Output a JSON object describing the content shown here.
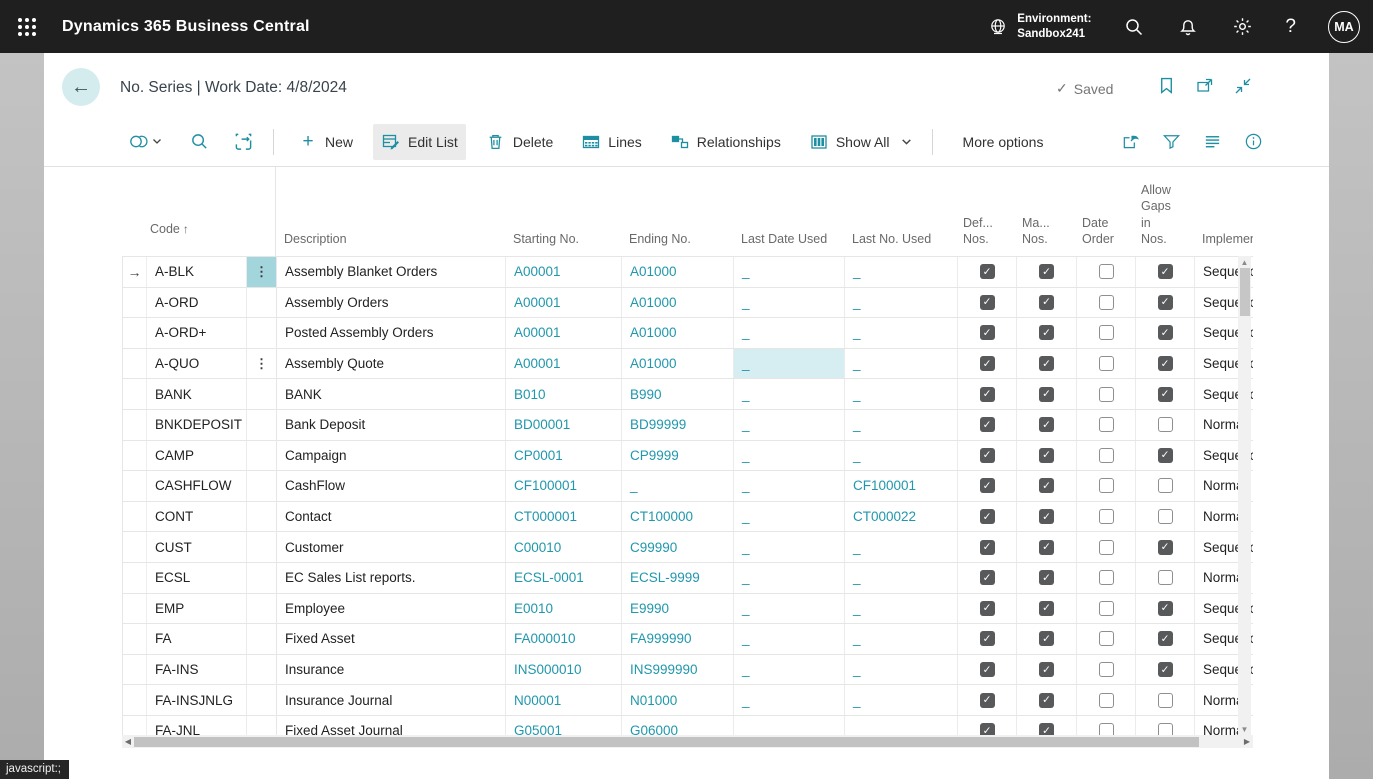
{
  "colors": {
    "topbar_bg": "#1f1f1f",
    "accent_teal": "#1e8fa3",
    "link_teal": "#2097ac",
    "selected_cell_bg": "#d6eef2",
    "highlight_cell_bg": "#a2d6dc",
    "backdrop_gray": "#b8b8b8",
    "checkbox_checked_bg": "#57595b"
  },
  "topbar": {
    "title": "Dynamics 365 Business Central",
    "environment_label": "Environment:",
    "environment_name": "Sandbox241",
    "avatar_initials": "MA"
  },
  "header": {
    "title": "No. Series | Work Date: 4/8/2024",
    "saved_label": "Saved"
  },
  "toolbar": {
    "new_label": "New",
    "edit_list_label": "Edit List",
    "delete_label": "Delete",
    "lines_label": "Lines",
    "relationships_label": "Relationships",
    "show_all_label": "Show All",
    "more_options_label": "More options"
  },
  "glyphs": {
    "sort_asc": "↑",
    "row_indicator": "→",
    "checkmark": "✓",
    "saved_check": "✓",
    "ellipsis": "⋮",
    "back_arrow": "←",
    "scroll_up": "▲",
    "scroll_down": "▼",
    "scroll_left": "◀",
    "scroll_right": "▶",
    "question_mark": "?",
    "plus": "+"
  },
  "grid": {
    "columns": {
      "code": "Code",
      "description": "Description",
      "starting_no": "Starting No.",
      "ending_no": "Ending No.",
      "last_date_used": "Last Date Used",
      "last_no_used": "Last No. Used",
      "default_nos": [
        "Def...",
        "Nos."
      ],
      "manual_nos": [
        "Ma...",
        "Nos."
      ],
      "date_order": [
        "Date",
        "Order"
      ],
      "allow_gaps": [
        "Allow",
        "Gaps",
        "in",
        "Nos."
      ],
      "implementation": "Implemen"
    },
    "rows": [
      {
        "code": "A-BLK",
        "description": "Assembly Blanket Orders",
        "starting_no": "A00001",
        "ending_no": "A01000",
        "last_date_used": "_",
        "last_no_used": "_",
        "default_nos": true,
        "manual_nos": true,
        "date_order": false,
        "allow_gaps": true,
        "implementation": "Sequence",
        "current": true,
        "dots": "highlight"
      },
      {
        "code": "A-ORD",
        "description": "Assembly Orders",
        "starting_no": "A00001",
        "ending_no": "A01000",
        "last_date_used": "_",
        "last_no_used": "_",
        "default_nos": true,
        "manual_nos": true,
        "date_order": false,
        "allow_gaps": true,
        "implementation": "Sequence"
      },
      {
        "code": "A-ORD+",
        "description": "Posted Assembly Orders",
        "starting_no": "A00001",
        "ending_no": "A01000",
        "last_date_used": "_",
        "last_no_used": "_",
        "default_nos": true,
        "manual_nos": true,
        "date_order": false,
        "allow_gaps": true,
        "implementation": "Sequence"
      },
      {
        "code": "A-QUO",
        "description": "Assembly Quote",
        "starting_no": "A00001",
        "ending_no": "A01000",
        "last_date_used": "_",
        "last_no_used": "_",
        "default_nos": true,
        "manual_nos": true,
        "date_order": false,
        "allow_gaps": true,
        "implementation": "Sequence",
        "dots": "plain",
        "selected_field": "last_date_used"
      },
      {
        "code": "BANK",
        "description": "BANK",
        "starting_no": "B010",
        "ending_no": "B990",
        "last_date_used": "_",
        "last_no_used": "_",
        "default_nos": true,
        "manual_nos": true,
        "date_order": false,
        "allow_gaps": true,
        "implementation": "Sequence"
      },
      {
        "code": "BNKDEPOSIT",
        "description": "Bank Deposit",
        "starting_no": "BD00001",
        "ending_no": "BD99999",
        "last_date_used": "_",
        "last_no_used": "_",
        "default_nos": true,
        "manual_nos": true,
        "date_order": false,
        "allow_gaps": false,
        "implementation": "Normal"
      },
      {
        "code": "CAMP",
        "description": "Campaign",
        "starting_no": "CP0001",
        "ending_no": "CP9999",
        "last_date_used": "_",
        "last_no_used": "_",
        "default_nos": true,
        "manual_nos": true,
        "date_order": false,
        "allow_gaps": true,
        "implementation": "Sequence"
      },
      {
        "code": "CASHFLOW",
        "description": "CashFlow",
        "starting_no": "CF100001",
        "ending_no": "_",
        "last_date_used": "_",
        "last_no_used": "CF100001",
        "default_nos": true,
        "manual_nos": true,
        "date_order": false,
        "allow_gaps": false,
        "implementation": "Normal"
      },
      {
        "code": "CONT",
        "description": "Contact",
        "starting_no": "CT000001",
        "ending_no": "CT100000",
        "last_date_used": "_",
        "last_no_used": "CT000022",
        "default_nos": true,
        "manual_nos": true,
        "date_order": false,
        "allow_gaps": false,
        "implementation": "Normal"
      },
      {
        "code": "CUST",
        "description": "Customer",
        "starting_no": "C00010",
        "ending_no": "C99990",
        "last_date_used": "_",
        "last_no_used": "_",
        "default_nos": true,
        "manual_nos": true,
        "date_order": false,
        "allow_gaps": true,
        "implementation": "Sequence"
      },
      {
        "code": "ECSL",
        "description": "EC Sales List reports.",
        "starting_no": "ECSL-0001",
        "ending_no": "ECSL-9999",
        "last_date_used": "_",
        "last_no_used": "_",
        "default_nos": true,
        "manual_nos": true,
        "date_order": false,
        "allow_gaps": false,
        "implementation": "Normal"
      },
      {
        "code": "EMP",
        "description": "Employee",
        "starting_no": "E0010",
        "ending_no": "E9990",
        "last_date_used": "_",
        "last_no_used": "_",
        "default_nos": true,
        "manual_nos": true,
        "date_order": false,
        "allow_gaps": true,
        "implementation": "Sequence"
      },
      {
        "code": "FA",
        "description": "Fixed Asset",
        "starting_no": "FA000010",
        "ending_no": "FA999990",
        "last_date_used": "_",
        "last_no_used": "_",
        "default_nos": true,
        "manual_nos": true,
        "date_order": false,
        "allow_gaps": true,
        "implementation": "Sequence"
      },
      {
        "code": "FA-INS",
        "description": "Insurance",
        "starting_no": "INS000010",
        "ending_no": "INS999990",
        "last_date_used": "_",
        "last_no_used": "_",
        "default_nos": true,
        "manual_nos": true,
        "date_order": false,
        "allow_gaps": true,
        "implementation": "Sequence"
      },
      {
        "code": "FA-INSJNLG",
        "description": "Insurance Journal",
        "starting_no": "N00001",
        "ending_no": "N01000",
        "last_date_used": "_",
        "last_no_used": "_",
        "default_nos": true,
        "manual_nos": true,
        "date_order": false,
        "allow_gaps": false,
        "implementation": "Normal"
      },
      {
        "code": "FA-JNL",
        "description": "Fixed Asset Journal",
        "starting_no": "G05001",
        "ending_no": "G06000",
        "last_date_used": "_",
        "last_no_used": "_",
        "default_nos": true,
        "manual_nos": true,
        "date_order": false,
        "allow_gaps": false,
        "implementation": "Normal"
      }
    ]
  },
  "status_tooltip": "javascript:;"
}
